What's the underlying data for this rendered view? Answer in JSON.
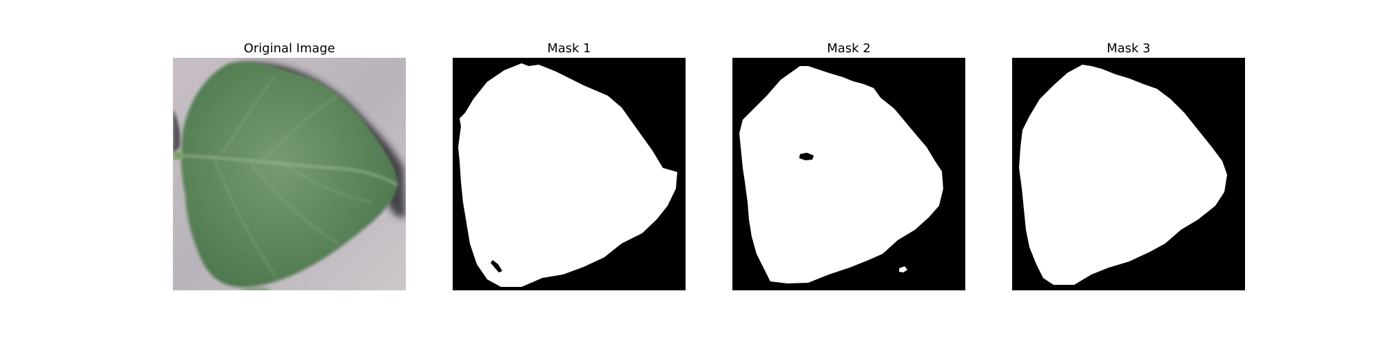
{
  "figure": {
    "panels": [
      {
        "title": "Original Image",
        "content": "leaf-photo"
      },
      {
        "title": "Mask 1",
        "content": "binary-mask"
      },
      {
        "title": "Mask 2",
        "content": "binary-mask"
      },
      {
        "title": "Mask 3",
        "content": "binary-mask"
      }
    ]
  },
  "colors": {
    "background": "#ffffff",
    "mask_foreground": "#ffffff",
    "mask_background": "#000000",
    "leaf_green": "#4f7a4c",
    "leaf_dark": "#2f4f30",
    "ground_gray": "#c8c0c6",
    "shadow": "#3a3a3e"
  }
}
